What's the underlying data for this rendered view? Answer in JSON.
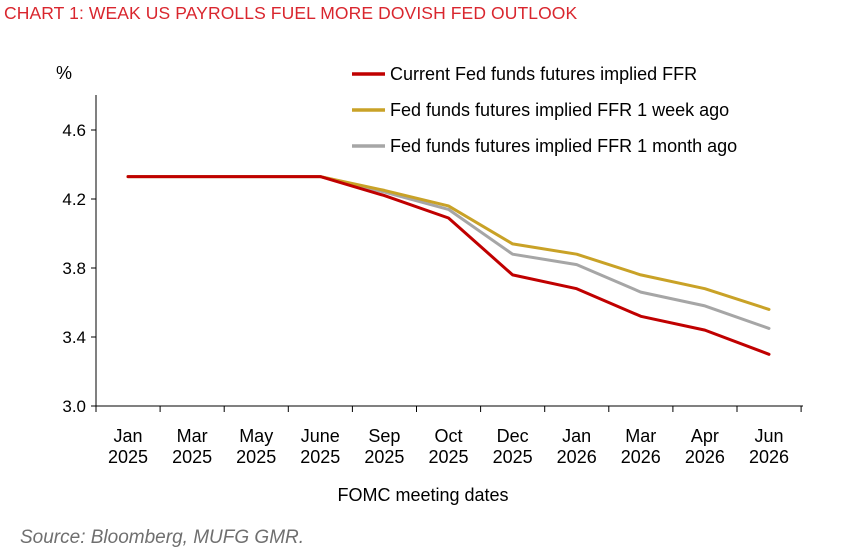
{
  "title": "CHART 1: WEAK US PAYROLLS FUEL MORE DOVISH FED OUTLOOK",
  "source": "Source: Bloomberg, MUFG GMR.",
  "colors": {
    "title": "#d9262e",
    "current": "#c00000",
    "week_ago": "#c9a227",
    "month_ago": "#a6a6a6",
    "axis": "#000000",
    "source_text": "#6f6f6f"
  },
  "chart_data": {
    "type": "line",
    "title": "CHART 1: WEAK US PAYROLLS FUEL MORE DOVISH FED OUTLOOK",
    "xlabel": "FOMC meeting dates",
    "ylabel": "%",
    "ylim": [
      3.0,
      4.8
    ],
    "yticks": [
      "3.0",
      "3.4",
      "3.8",
      "4.2",
      "4.6"
    ],
    "grid": false,
    "legend_position": "top-right",
    "categories": [
      "Jan 2025",
      "Mar 2025",
      "May 2025",
      "June 2025",
      "Sep 2025",
      "Oct 2025",
      "Dec 2025",
      "Jan 2026",
      "Mar 2026",
      "Apr 2026",
      "Jun 2026"
    ],
    "tick_labels": [
      {
        "month": "Jan",
        "year": "2025"
      },
      {
        "month": "Mar",
        "year": "2025"
      },
      {
        "month": "May",
        "year": "2025"
      },
      {
        "month": "June",
        "year": "2025"
      },
      {
        "month": "Sep",
        "year": "2025"
      },
      {
        "month": "Oct",
        "year": "2025"
      },
      {
        "month": "Dec",
        "year": "2025"
      },
      {
        "month": "Jan",
        "year": "2026"
      },
      {
        "month": "Mar",
        "year": "2026"
      },
      {
        "month": "Apr",
        "year": "2026"
      },
      {
        "month": "Jun",
        "year": "2026"
      }
    ],
    "series": [
      {
        "name": "Current Fed funds futures implied FFR",
        "color": "#c00000",
        "values": [
          4.33,
          4.33,
          4.33,
          4.33,
          4.22,
          4.09,
          3.76,
          3.68,
          3.52,
          3.44,
          3.3
        ]
      },
      {
        "name": "Fed funds futures implied FFR 1 week ago",
        "color": "#c9a227",
        "values": [
          4.33,
          4.33,
          4.33,
          4.33,
          4.25,
          4.16,
          3.94,
          3.88,
          3.76,
          3.68,
          3.56
        ]
      },
      {
        "name": "Fed funds futures implied FFR 1 month ago",
        "color": "#a6a6a6",
        "values": [
          4.33,
          4.33,
          4.33,
          4.33,
          4.24,
          4.14,
          3.88,
          3.82,
          3.66,
          3.58,
          3.45
        ]
      }
    ]
  }
}
